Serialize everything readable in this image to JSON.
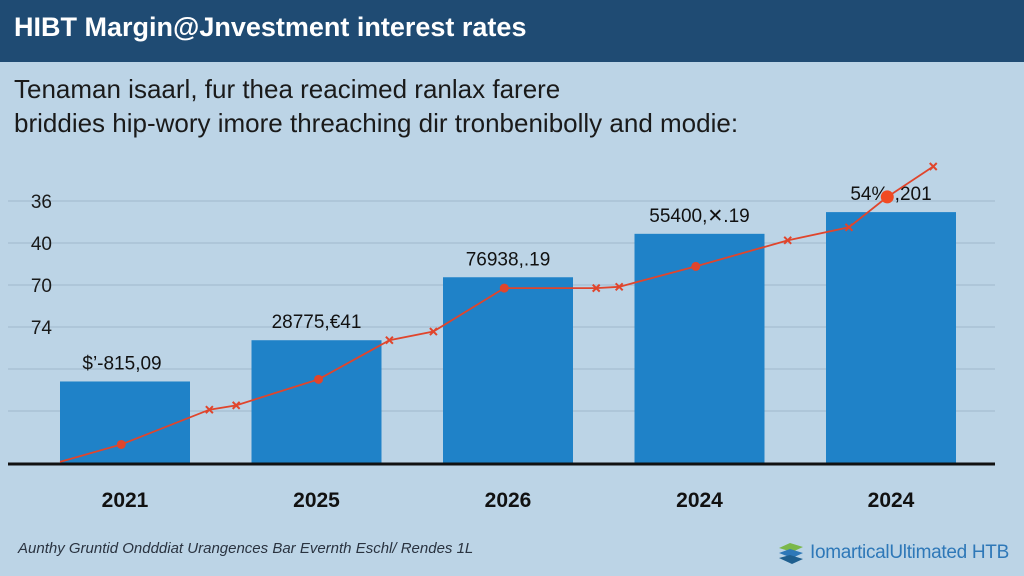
{
  "chart_data": {
    "type": "bar",
    "title": "HIBT Margin@Jnvestment interest rates",
    "subtitle_lines": [
      "Tenaman isaarl, fur thea reacimed ranlax farere",
      "briddies hip-wory imore threaching dir tronbenibolly and modie:"
    ],
    "y_tick_labels": [
      "36",
      "40",
      "70",
      "74"
    ],
    "categories": [
      "2021",
      "2025",
      "2026",
      "2024",
      "2024"
    ],
    "bar_values": [
      19,
      28.5,
      43,
      53,
      58
    ],
    "data_labels": [
      "$’-815,09",
      "28775,€41",
      "76938,.19",
      "55400,✕.19",
      "54%·,201"
    ],
    "ylim": [
      0,
      70
    ],
    "gridlines": true,
    "line_series": {
      "name": "trend",
      "color": "#e0452c",
      "points": [
        {
          "x": 0.0,
          "y": 0.5
        },
        {
          "x": 0.32,
          "y": 4.5
        },
        {
          "x": 0.78,
          "y": 12.5
        },
        {
          "x": 0.92,
          "y": 13.5
        },
        {
          "x": 1.35,
          "y": 19.5
        },
        {
          "x": 1.72,
          "y": 28.5
        },
        {
          "x": 1.95,
          "y": 30.5
        },
        {
          "x": 2.32,
          "y": 40.5
        },
        {
          "x": 2.8,
          "y": 40.5
        },
        {
          "x": 2.92,
          "y": 40.8
        },
        {
          "x": 3.32,
          "y": 45.5
        },
        {
          "x": 3.8,
          "y": 51.5
        },
        {
          "x": 4.12,
          "y": 54.5
        },
        {
          "x": 4.32,
          "y": 61.5
        },
        {
          "x": 4.56,
          "y": 68.5
        }
      ],
      "highlight_index": 13,
      "highlight_color": "#f04a22"
    },
    "bar_color": "#1f82c8"
  },
  "footer": {
    "note": "Aunthy Gruntid Ondddiat Urangences Bar Evernth Eschl/ Rendes 1L",
    "brand": "IomarticalUltimated HTB"
  },
  "colors": {
    "background": "#bcd4e6",
    "title_bar": "#1f4b73",
    "axis": "#111111",
    "grid": "#9fb8cc"
  },
  "icons": {
    "brand_logo": "brand-logo-icon"
  }
}
